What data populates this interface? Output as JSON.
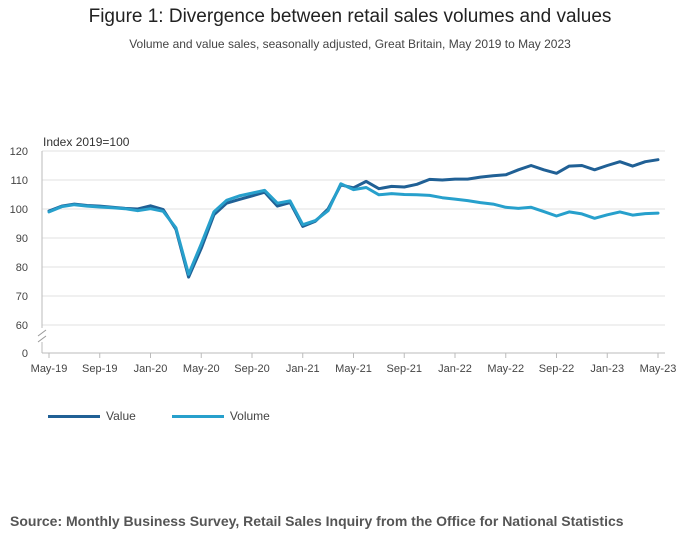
{
  "title": "Figure 1: Divergence between retail sales volumes and values",
  "subtitle": "Volume and value sales, seasonally adjusted, Great Britain, May 2019 to May 2023",
  "source": "Source: Monthly Business Survey, Retail Sales Inquiry from the Office for National Statistics",
  "chart_data": {
    "type": "line",
    "ylabel": "Index 2019=100",
    "y_ticks": [
      0,
      60,
      70,
      80,
      90,
      100,
      110,
      120
    ],
    "y_axis_break": true,
    "ylim": [
      55,
      120
    ],
    "x_tick_labels": [
      "May-19",
      "Sep-19",
      "Jan-20",
      "May-20",
      "Sep-20",
      "Jan-21",
      "May-21",
      "Sep-21",
      "Jan-22",
      "May-22",
      "Sep-22",
      "Jan-23",
      "May-23"
    ],
    "x": [
      "May-19",
      "Jun-19",
      "Jul-19",
      "Aug-19",
      "Sep-19",
      "Oct-19",
      "Nov-19",
      "Dec-19",
      "Jan-20",
      "Feb-20",
      "Mar-20",
      "Apr-20",
      "May-20",
      "Jun-20",
      "Jul-20",
      "Aug-20",
      "Sep-20",
      "Oct-20",
      "Nov-20",
      "Dec-20",
      "Jan-21",
      "Feb-21",
      "Mar-21",
      "Apr-21",
      "May-21",
      "Jun-21",
      "Jul-21",
      "Aug-21",
      "Sep-21",
      "Oct-21",
      "Nov-21",
      "Dec-21",
      "Jan-22",
      "Feb-22",
      "Mar-22",
      "Apr-22",
      "May-22",
      "Jun-22",
      "Jul-22",
      "Aug-22",
      "Sep-22",
      "Oct-22",
      "Nov-22",
      "Dec-22",
      "Jan-23",
      "Feb-23",
      "Mar-23",
      "Apr-23",
      "May-23"
    ],
    "grid": true,
    "legend_position": "bottom-left",
    "series": [
      {
        "name": "Value",
        "color": "#206095",
        "values": [
          99.3,
          101.0,
          101.7,
          101.2,
          101.0,
          100.6,
          100.2,
          100.0,
          101.1,
          99.8,
          93.0,
          76.5,
          86.5,
          98.0,
          102.0,
          103.3,
          104.5,
          105.8,
          101.0,
          102.2,
          94.0,
          95.8,
          100.0,
          108.3,
          107.3,
          109.5,
          107.0,
          107.8,
          107.6,
          108.5,
          110.2,
          110.0,
          110.3,
          110.3,
          111.0,
          111.5,
          111.8,
          113.5,
          115.0,
          113.5,
          112.3,
          114.8,
          115.0,
          113.5,
          115.0,
          116.3,
          114.8,
          116.3,
          117.0
        ]
      },
      {
        "name": "Volume",
        "color": "#27a0cc",
        "values": [
          99.0,
          100.8,
          101.5,
          101.0,
          100.7,
          100.4,
          100.1,
          99.4,
          100.1,
          99.2,
          93.5,
          77.5,
          88.0,
          99.0,
          103.0,
          104.5,
          105.5,
          106.4,
          102.0,
          102.8,
          94.6,
          96.0,
          99.4,
          108.7,
          106.7,
          107.4,
          104.9,
          105.3,
          105.0,
          104.9,
          104.7,
          103.9,
          103.4,
          102.9,
          102.2,
          101.7,
          100.6,
          100.2,
          100.6,
          99.1,
          97.6,
          99.0,
          98.3,
          96.8,
          98.0,
          99.0,
          97.9,
          98.4,
          98.6
        ]
      }
    ]
  }
}
